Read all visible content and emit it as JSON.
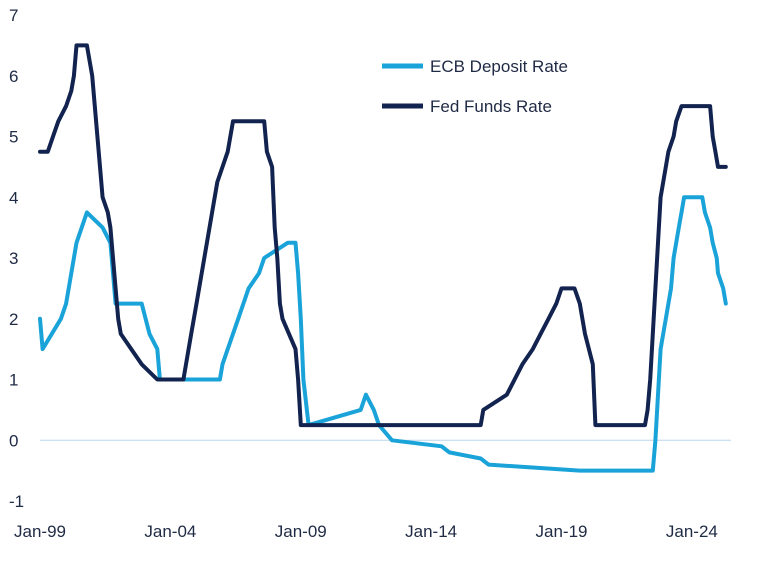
{
  "chart_data": {
    "type": "line",
    "title": "",
    "xlabel": "",
    "ylabel": "",
    "ylim": [
      -1,
      7
    ],
    "y_ticks": [
      -1,
      0,
      1,
      2,
      3,
      4,
      5,
      6,
      7
    ],
    "x_ticks": [
      {
        "label": "Jan-99",
        "x": 1999.0
      },
      {
        "label": "Jan-04",
        "x": 2004.0
      },
      {
        "label": "Jan-09",
        "x": 2009.0
      },
      {
        "label": "Jan-14",
        "x": 2014.0
      },
      {
        "label": "Jan-19",
        "x": 2019.0
      },
      {
        "label": "Jan-24",
        "x": 2024.0
      }
    ],
    "xlim": [
      1999.0,
      2025.5
    ],
    "grid": false,
    "zero_line": true,
    "legend": "top-right",
    "series": [
      {
        "name": "ECB Deposit Rate",
        "color": "#1aa3d9",
        "points": [
          [
            1999.0,
            2.0
          ],
          [
            1999.1,
            1.5
          ],
          [
            1999.8,
            2.0
          ],
          [
            2000.0,
            2.25
          ],
          [
            2000.2,
            2.75
          ],
          [
            2000.4,
            3.25
          ],
          [
            2000.6,
            3.5
          ],
          [
            2000.8,
            3.75
          ],
          [
            2001.4,
            3.5
          ],
          [
            2001.7,
            3.25
          ],
          [
            2001.8,
            2.75
          ],
          [
            2001.9,
            2.25
          ],
          [
            2002.9,
            2.25
          ],
          [
            2003.2,
            1.75
          ],
          [
            2003.5,
            1.5
          ],
          [
            2003.6,
            1.0
          ],
          [
            2005.9,
            1.0
          ],
          [
            2006.0,
            1.25
          ],
          [
            2006.2,
            1.5
          ],
          [
            2006.4,
            1.75
          ],
          [
            2006.6,
            2.0
          ],
          [
            2006.8,
            2.25
          ],
          [
            2007.0,
            2.5
          ],
          [
            2007.4,
            2.75
          ],
          [
            2007.6,
            3.0
          ],
          [
            2008.5,
            3.25
          ],
          [
            2008.8,
            3.25
          ],
          [
            2008.9,
            2.75
          ],
          [
            2009.0,
            2.0
          ],
          [
            2009.1,
            1.0
          ],
          [
            2009.3,
            0.25
          ],
          [
            2011.3,
            0.5
          ],
          [
            2011.5,
            0.75
          ],
          [
            2011.8,
            0.5
          ],
          [
            2012.0,
            0.25
          ],
          [
            2012.5,
            0.0
          ],
          [
            2014.4,
            -0.1
          ],
          [
            2014.7,
            -0.2
          ],
          [
            2015.9,
            -0.3
          ],
          [
            2016.2,
            -0.4
          ],
          [
            2019.7,
            -0.5
          ],
          [
            2022.5,
            -0.5
          ],
          [
            2022.6,
            0.0
          ],
          [
            2022.7,
            0.75
          ],
          [
            2022.8,
            1.5
          ],
          [
            2023.0,
            2.0
          ],
          [
            2023.2,
            2.5
          ],
          [
            2023.3,
            3.0
          ],
          [
            2023.5,
            3.5
          ],
          [
            2023.6,
            3.75
          ],
          [
            2023.7,
            4.0
          ],
          [
            2024.4,
            4.0
          ],
          [
            2024.5,
            3.75
          ],
          [
            2024.7,
            3.5
          ],
          [
            2024.8,
            3.25
          ],
          [
            2024.95,
            3.0
          ],
          [
            2025.0,
            2.75
          ],
          [
            2025.2,
            2.5
          ],
          [
            2025.3,
            2.25
          ]
        ]
      },
      {
        "name": "Fed Funds Rate",
        "color": "#13234f",
        "points": [
          [
            1999.0,
            4.75
          ],
          [
            1999.3,
            4.75
          ],
          [
            1999.5,
            5.0
          ],
          [
            1999.7,
            5.25
          ],
          [
            2000.0,
            5.5
          ],
          [
            2000.2,
            5.75
          ],
          [
            2000.3,
            6.0
          ],
          [
            2000.4,
            6.5
          ],
          [
            2000.8,
            6.5
          ],
          [
            2001.0,
            6.0
          ],
          [
            2001.1,
            5.5
          ],
          [
            2001.2,
            5.0
          ],
          [
            2001.3,
            4.5
          ],
          [
            2001.4,
            4.0
          ],
          [
            2001.6,
            3.75
          ],
          [
            2001.7,
            3.5
          ],
          [
            2001.8,
            3.0
          ],
          [
            2001.9,
            2.5
          ],
          [
            2002.0,
            2.0
          ],
          [
            2002.1,
            1.75
          ],
          [
            2002.9,
            1.25
          ],
          [
            2003.5,
            1.0
          ],
          [
            2004.5,
            1.0
          ],
          [
            2004.6,
            1.25
          ],
          [
            2004.7,
            1.5
          ],
          [
            2004.8,
            1.75
          ],
          [
            2005.0,
            2.25
          ],
          [
            2005.2,
            2.75
          ],
          [
            2005.4,
            3.25
          ],
          [
            2005.6,
            3.75
          ],
          [
            2005.8,
            4.25
          ],
          [
            2006.0,
            4.5
          ],
          [
            2006.2,
            4.75
          ],
          [
            2006.4,
            5.25
          ],
          [
            2007.6,
            5.25
          ],
          [
            2007.7,
            4.75
          ],
          [
            2007.9,
            4.5
          ],
          [
            2008.0,
            3.5
          ],
          [
            2008.1,
            3.0
          ],
          [
            2008.2,
            2.25
          ],
          [
            2008.3,
            2.0
          ],
          [
            2008.8,
            1.5
          ],
          [
            2008.9,
            1.0
          ],
          [
            2009.0,
            0.25
          ],
          [
            2015.9,
            0.25
          ],
          [
            2016.0,
            0.5
          ],
          [
            2016.9,
            0.75
          ],
          [
            2017.2,
            1.0
          ],
          [
            2017.5,
            1.25
          ],
          [
            2017.9,
            1.5
          ],
          [
            2018.2,
            1.75
          ],
          [
            2018.5,
            2.0
          ],
          [
            2018.8,
            2.25
          ],
          [
            2019.0,
            2.5
          ],
          [
            2019.5,
            2.5
          ],
          [
            2019.7,
            2.25
          ],
          [
            2019.8,
            2.0
          ],
          [
            2019.9,
            1.75
          ],
          [
            2020.2,
            1.25
          ],
          [
            2020.3,
            0.25
          ],
          [
            2022.2,
            0.25
          ],
          [
            2022.3,
            0.5
          ],
          [
            2022.4,
            1.0
          ],
          [
            2022.5,
            1.75
          ],
          [
            2022.6,
            2.5
          ],
          [
            2022.7,
            3.25
          ],
          [
            2022.8,
            4.0
          ],
          [
            2023.0,
            4.5
          ],
          [
            2023.1,
            4.75
          ],
          [
            2023.3,
            5.0
          ],
          [
            2023.4,
            5.25
          ],
          [
            2023.6,
            5.5
          ],
          [
            2024.7,
            5.5
          ],
          [
            2024.8,
            5.0
          ],
          [
            2024.9,
            4.75
          ],
          [
            2025.0,
            4.5
          ],
          [
            2025.3,
            4.5
          ]
        ]
      }
    ]
  }
}
